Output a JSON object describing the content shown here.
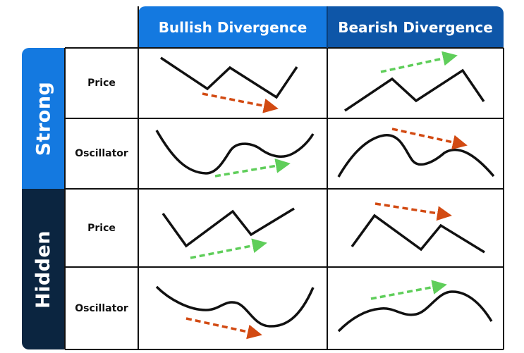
{
  "columns": [
    {
      "label": "Bullish Divergence",
      "color": "#1479e0"
    },
    {
      "label": "Bearish Divergence",
      "color": "#0e56a8"
    }
  ],
  "groups": [
    {
      "label": "Strong",
      "color": "#1479e0",
      "rows": [
        "Price",
        "Oscillator"
      ]
    },
    {
      "label": "Hidden",
      "color": "#0b2540",
      "rows": [
        "Price",
        "Oscillator"
      ]
    }
  ],
  "colors": {
    "border": "#111111",
    "line": "#111111",
    "bullish_arrow": "#5fce5a",
    "bearish_arrow": "#d24a12"
  },
  "cells": {
    "strong_price_bullish": {
      "price_shape": "lower-lows",
      "arrow": "bearish",
      "arrow_direction": "down"
    },
    "strong_price_bearish": {
      "price_shape": "higher-highs",
      "arrow": "bullish",
      "arrow_direction": "up"
    },
    "strong_osc_bullish": {
      "curve_shape": "higher-lows",
      "arrow": "bullish",
      "arrow_direction": "up"
    },
    "strong_osc_bearish": {
      "curve_shape": "lower-highs",
      "arrow": "bearish",
      "arrow_direction": "down"
    },
    "hidden_price_bullish": {
      "price_shape": "higher-lows",
      "arrow": "bullish",
      "arrow_direction": "up"
    },
    "hidden_price_bearish": {
      "price_shape": "lower-highs",
      "arrow": "bearish",
      "arrow_direction": "down"
    },
    "hidden_osc_bullish": {
      "curve_shape": "lower-lows",
      "arrow": "bearish",
      "arrow_direction": "down"
    },
    "hidden_osc_bearish": {
      "curve_shape": "higher-highs",
      "arrow": "bullish",
      "arrow_direction": "up"
    }
  }
}
